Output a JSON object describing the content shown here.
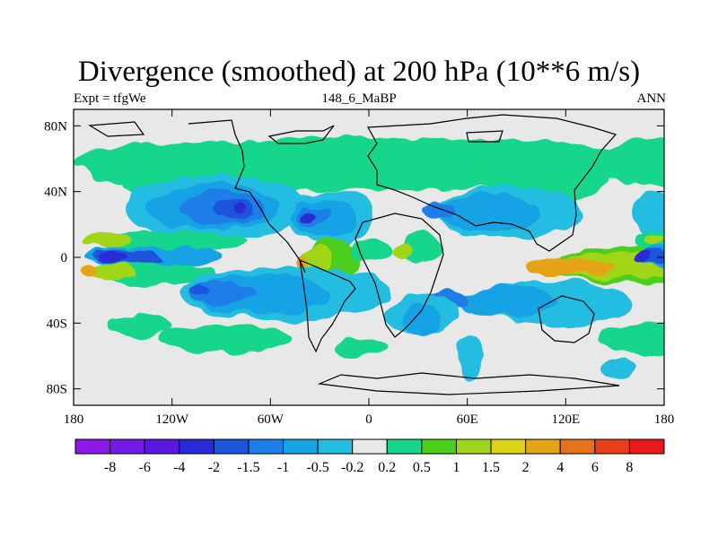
{
  "title": "Divergence (smoothed) at 200 hPa (10**6 m/s)",
  "subtitle_left": "Expt = tfgWe",
  "subtitle_center": "148_6_MaBP",
  "subtitle_right": "ANN",
  "colors": {
    "background": "#e8e8e8",
    "coast": "#000000"
  },
  "chart_data": {
    "type": "heatmap",
    "title": "Divergence (smoothed) at 200 hPa (10**6 m/s)",
    "xlabel": "",
    "ylabel": "",
    "xlim": [
      -180,
      180
    ],
    "ylim": [
      -90,
      90
    ],
    "x_ticks": [
      {
        "value": -180,
        "label": "180"
      },
      {
        "value": -120,
        "label": "120W"
      },
      {
        "value": -60,
        "label": "60W"
      },
      {
        "value": 0,
        "label": "0"
      },
      {
        "value": 60,
        "label": "60E"
      },
      {
        "value": 120,
        "label": "120E"
      },
      {
        "value": 180,
        "label": "180"
      }
    ],
    "y_ticks": [
      {
        "value": 80,
        "label": "80N"
      },
      {
        "value": 40,
        "label": "40N"
      },
      {
        "value": 0,
        "label": "0"
      },
      {
        "value": -40,
        "label": "40S"
      },
      {
        "value": -80,
        "label": "80S"
      }
    ],
    "colorbar": {
      "labels": [
        "-8",
        "-6",
        "-4",
        "-2",
        "-1.5",
        "-1",
        "-0.5",
        "-0.2",
        "0.2",
        "0.5",
        "1",
        "1.5",
        "2",
        "4",
        "6",
        "8"
      ],
      "colors": [
        "#8c19e6",
        "#7319e6",
        "#5a19e0",
        "#2a2ad6",
        "#1a55dc",
        "#1a7ee6",
        "#19a3e6",
        "#22bde0",
        "#e8e8e8",
        "#17d68c",
        "#4ccf1a",
        "#a0d619",
        "#dcd219",
        "#e6a319",
        "#e6731a",
        "#e6401a",
        "#e61a1a"
      ],
      "bins": [
        "<-8",
        "-8 to -6",
        "-6 to -4",
        "-4 to -2",
        "-2 to -1.5",
        "-1.5 to -1",
        "-1 to -0.5",
        "-0.5 to -0.2",
        "-0.2 to 0.2",
        "0.2 to 0.5",
        "0.5 to 1",
        "1 to 1.5",
        "1.5 to 2",
        "2 to 4",
        "4 to 6",
        "6 to 8",
        ">8"
      ]
    },
    "features": [
      {
        "name": "n-bg-band",
        "level": 0.3,
        "lon": -180,
        "lat": 57,
        "w": 360,
        "h": 16
      },
      {
        "name": "n-east",
        "level": 0.5,
        "lon": 140,
        "lat": 58,
        "w": 80,
        "h": 14
      },
      {
        "name": "n-west",
        "level": 0.5,
        "lon": -175,
        "lat": 56,
        "w": 55,
        "h": 12
      },
      {
        "name": "n-europe",
        "level": 0.5,
        "lon": -10,
        "lat": 50,
        "w": 35,
        "h": 9
      },
      {
        "name": "n-asia",
        "level": 0.5,
        "lon": 85,
        "lat": 46,
        "w": 60,
        "h": 12
      },
      {
        "name": "na-green",
        "level": 0.5,
        "lon": -150,
        "lat": 44,
        "w": 115,
        "h": 12
      },
      {
        "name": "na-cyan",
        "level": -0.35,
        "lon": -148,
        "lat": 30,
        "w": 110,
        "h": 20
      },
      {
        "name": "na-mid",
        "level": -0.7,
        "lon": -135,
        "lat": 31,
        "w": 80,
        "h": 14
      },
      {
        "name": "na-blue",
        "level": -1.2,
        "lon": -115,
        "lat": 30,
        "w": 50,
        "h": 11
      },
      {
        "name": "na-core",
        "level": -1.7,
        "lon": -95,
        "lat": 29,
        "w": 26,
        "h": 7
      },
      {
        "name": "na-dark",
        "level": -3,
        "lon": -82,
        "lat": 29,
        "w": 9,
        "h": 4
      },
      {
        "name": "atl-cyan",
        "level": -0.35,
        "lon": -48,
        "lat": 24,
        "w": 52,
        "h": 17
      },
      {
        "name": "atl-mid",
        "level": -0.7,
        "lon": -45,
        "lat": 24,
        "w": 38,
        "h": 12
      },
      {
        "name": "atl-blue",
        "level": -1.2,
        "lon": -42,
        "lat": 25,
        "w": 18,
        "h": 6
      },
      {
        "name": "atl-dark",
        "level": -3,
        "lon": -40,
        "lat": 25,
        "w": 8,
        "h": 3
      },
      {
        "name": "as-cyan",
        "level": -0.35,
        "lon": 40,
        "lat": 27,
        "w": 90,
        "h": 16
      },
      {
        "name": "as-mid",
        "level": -0.7,
        "lon": 40,
        "lat": 27,
        "w": 65,
        "h": 11
      },
      {
        "name": "as-blue",
        "level": -1.2,
        "lon": 30,
        "lat": 28,
        "w": 22,
        "h": 6
      },
      {
        "name": "np-cyan",
        "level": -0.35,
        "lon": 160,
        "lat": 27,
        "w": 30,
        "h": 14
      },
      {
        "name": "eq-w-green",
        "level": 0.5,
        "lon": -170,
        "lat": 9,
        "w": 95,
        "h": 7
      },
      {
        "name": "eq-w-yellow",
        "level": 1.2,
        "lon": -175,
        "lat": 10,
        "w": 30,
        "h": 5
      },
      {
        "name": "eq-w-neg",
        "level": -0.8,
        "lon": -175,
        "lat": 0,
        "w": 85,
        "h": 6
      },
      {
        "name": "eq-w-neg2",
        "level": -1.6,
        "lon": -170,
        "lat": 0,
        "w": 45,
        "h": 4
      },
      {
        "name": "eq-w-dark",
        "level": -3,
        "lon": -165,
        "lat": 0,
        "w": 18,
        "h": 3
      },
      {
        "name": "eq-w-s-green",
        "level": 0.5,
        "lon": -165,
        "lat": -10,
        "w": 70,
        "h": 7
      },
      {
        "name": "eq-w-s-yellow",
        "level": 1.2,
        "lon": -170,
        "lat": -9,
        "w": 28,
        "h": 5
      },
      {
        "name": "eq-w-s-orange",
        "level": 2.5,
        "lon": -175,
        "lat": -9,
        "w": 10,
        "h": 3
      },
      {
        "name": "sa-green",
        "level": 0.6,
        "lon": -40,
        "lat": -2,
        "w": 35,
        "h": 13
      },
      {
        "name": "sa-yellow",
        "level": 1.3,
        "lon": -42,
        "lat": -2,
        "w": 20,
        "h": 8
      },
      {
        "name": "sa-orange",
        "level": 2.5,
        "lon": -45,
        "lat": -3,
        "w": 8,
        "h": 4
      },
      {
        "name": "atl-pos",
        "level": 0.5,
        "lon": -10,
        "lat": 4,
        "w": 25,
        "h": 7
      },
      {
        "name": "af-green",
        "level": 0.5,
        "lon": 20,
        "lat": 5,
        "w": 25,
        "h": 10
      },
      {
        "name": "af-yellow",
        "level": 1.2,
        "lon": 15,
        "lat": 5,
        "w": 12,
        "h": 5
      },
      {
        "name": "io-green",
        "level": 0.6,
        "lon": 110,
        "lat": -5,
        "w": 110,
        "h": 11
      },
      {
        "name": "io-yellow",
        "level": 1.3,
        "lon": 110,
        "lat": -5,
        "w": 90,
        "h": 8
      },
      {
        "name": "io-orange",
        "level": 2.5,
        "lon": 95,
        "lat": -5,
        "w": 55,
        "h": 5
      },
      {
        "name": "ep-green",
        "level": 0.5,
        "lon": 162,
        "lat": 9,
        "w": 25,
        "h": 7
      },
      {
        "name": "ep-yellow",
        "level": 1.2,
        "lon": 168,
        "lat": 10,
        "w": 12,
        "h": 4
      },
      {
        "name": "ep-neg",
        "level": -0.8,
        "lon": 165,
        "lat": 0,
        "w": 32,
        "h": 6
      },
      {
        "name": "ep-neg2",
        "level": -1.6,
        "lon": 163,
        "lat": 0,
        "w": 20,
        "h": 4
      },
      {
        "name": "ep-dark",
        "level": -3,
        "lon": 162,
        "lat": 0,
        "w": 9,
        "h": 3
      },
      {
        "name": "ss-cyan",
        "level": -0.35,
        "lon": -115,
        "lat": -22,
        "w": 130,
        "h": 16
      },
      {
        "name": "ss-mid",
        "level": -0.7,
        "lon": -108,
        "lat": -22,
        "w": 85,
        "h": 12
      },
      {
        "name": "ss-blue",
        "level": -1.2,
        "lon": -110,
        "lat": -21,
        "w": 40,
        "h": 7
      },
      {
        "name": "ss-core",
        "level": -1.7,
        "lon": -110,
        "lat": -20,
        "w": 14,
        "h": 3
      },
      {
        "name": "sio-cyan",
        "level": -0.35,
        "lon": 65,
        "lat": -28,
        "w": 95,
        "h": 14
      },
      {
        "name": "sio-mid",
        "level": -0.7,
        "lon": 55,
        "lat": -27,
        "w": 60,
        "h": 10
      },
      {
        "name": "sio-blue",
        "level": -1.2,
        "lon": 35,
        "lat": -26,
        "w": 25,
        "h": 6
      },
      {
        "name": "saf-cyan",
        "level": -0.35,
        "lon": 10,
        "lat": -35,
        "w": 45,
        "h": 12
      },
      {
        "name": "saf-mid",
        "level": -0.7,
        "lon": 20,
        "lat": -38,
        "w": 25,
        "h": 10
      },
      {
        "name": "so-green-w",
        "level": 0.5,
        "lon": -130,
        "lat": -50,
        "w": 85,
        "h": 9
      },
      {
        "name": "so-green-e",
        "level": 0.5,
        "lon": 140,
        "lat": -50,
        "w": 70,
        "h": 10
      },
      {
        "name": "so-green-s",
        "level": 0.5,
        "lon": -160,
        "lat": -42,
        "w": 40,
        "h": 6
      },
      {
        "name": "so-green-m",
        "level": 0.5,
        "lon": -20,
        "lat": -55,
        "w": 30,
        "h": 6
      },
      {
        "name": "so-cyan-a",
        "level": -0.4,
        "lon": 55,
        "lat": -60,
        "w": 15,
        "h": 14
      },
      {
        "name": "so-cyan-b",
        "level": -0.4,
        "lon": 140,
        "lat": -68,
        "w": 22,
        "h": 6
      }
    ]
  }
}
